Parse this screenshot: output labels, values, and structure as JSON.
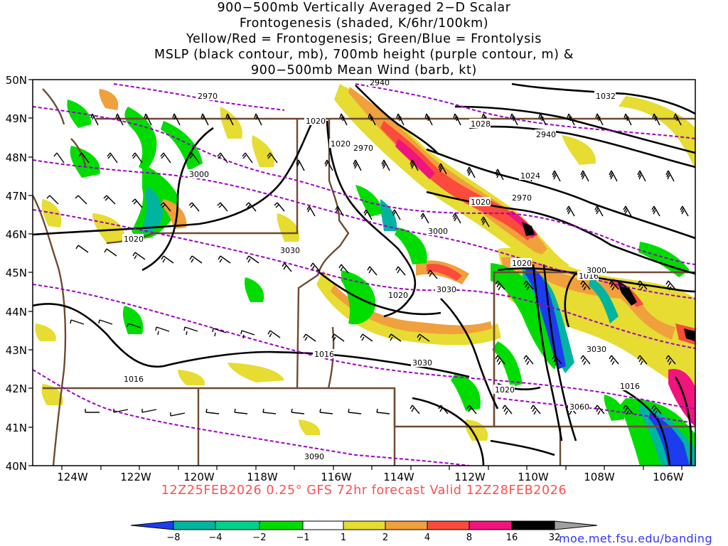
{
  "title_lines": [
    "900−500mb Vertically Averaged 2−D Scalar",
    "Frontogenesis (shaded, K/6hr/100km)",
    "Yellow/Red = Frontogenesis;  Green/Blue = Frontolysis",
    "MSLP (black contour, mb), 700mb height (purple contour, m) &",
    "900−500mb Mean Wind (barb, kt)"
  ],
  "footer": "12Z25FEB2026 0.25° GFS 72hr forecast Valid 12Z28FEB2026",
  "credit": "moe.met.fsu.edu/banding",
  "map": {
    "lon_labels": [
      "124W",
      "122W",
      "120W",
      "118W",
      "116W",
      "114W",
      "112W",
      "110W",
      "108W",
      "106W"
    ],
    "lat_labels": [
      "50N",
      "49N",
      "48N",
      "47N",
      "46N",
      "45N",
      "44N",
      "43N",
      "42N",
      "41N",
      "40N"
    ],
    "mslp_labels": [
      "1032",
      "1028",
      "1024",
      "1020",
      "1020",
      "1020",
      "1020",
      "1020",
      "1020",
      "1020",
      "1016",
      "1016",
      "1016",
      "1016"
    ],
    "height_labels": [
      "2940",
      "2940",
      "2970",
      "2970",
      "2970",
      "3000",
      "3000",
      "3000",
      "3030",
      "3030",
      "3030",
      "3030",
      "3060",
      "3090"
    ]
  },
  "colorbar": {
    "labels": [
      "−8",
      "−4",
      "−2",
      "−1",
      "1",
      "2",
      "4",
      "8",
      "16",
      "32"
    ],
    "colors": [
      "#1c3cf0",
      "#00b4a0",
      "#00d28c",
      "#00dc00",
      "#ffffff",
      "#e6dc32",
      "#f0a03c",
      "#fa4b3c",
      "#f0147d",
      "#000000",
      "#a0a0a0"
    ]
  },
  "colors": {
    "mslp": "#000000",
    "height": "#a000c8",
    "borders": "#6e4b32",
    "footer": "#ff4f4f",
    "credit": "#3333ff"
  }
}
